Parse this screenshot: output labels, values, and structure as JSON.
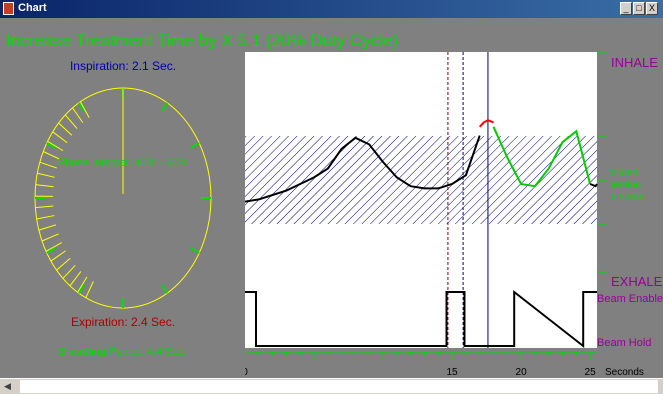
{
  "window": {
    "title": "Chart",
    "minimize_label": "_",
    "maximize_label": "□",
    "close_label": "X"
  },
  "heading": "Increase Treatment Time by X 5.1 (20% Duty Cycle)",
  "gauge": {
    "inspiration_label": "Inspiration: 2.1 Sec.",
    "phase_interval_label": "Phase Interval: 40% - 60%",
    "expiration_label": "Expiration: 2.4 Sec.",
    "breathing_period_label": "Breathing Period: 4.4 Sec.",
    "colors": {
      "circle": "#ffff00",
      "ticks": "#00dd00",
      "inspiration_text": "#0000aa",
      "expiration_text": "#aa0000",
      "info_text": "#00dd00"
    }
  },
  "chart_data": [
    {
      "type": "line",
      "title": "",
      "xlabel": "Seconds",
      "xlim": [
        0,
        25.5
      ],
      "x_ticks": [
        "0",
        "15",
        "20",
        "25"
      ],
      "right_labels": {
        "top": "INHALE",
        "gated": "Gated Motion 3.5 mm",
        "bottom": "EXHALE"
      },
      "gate_window": {
        "ymin": 0.35,
        "ymax": 0.75,
        "pattern": "diagonal-hatch",
        "color": "#000080"
      },
      "markers": [
        {
          "x": 14.7,
          "style": "dashed",
          "color": "#8b0000"
        },
        {
          "x": 15.8,
          "style": "dashed",
          "color": "#000080"
        },
        {
          "x": 17.6,
          "style": "solid",
          "color": "#000080"
        }
      ],
      "series": [
        {
          "color": "#000000",
          "x": [
            0,
            1,
            2,
            3,
            4,
            5,
            6,
            7,
            8,
            9,
            10,
            11,
            12,
            13,
            14,
            15,
            16,
            17
          ],
          "y": [
            0.32,
            0.33,
            0.35,
            0.37,
            0.4,
            0.43,
            0.47,
            0.56,
            0.61,
            0.58,
            0.5,
            0.43,
            0.39,
            0.38,
            0.38,
            0.4,
            0.44,
            0.62
          ]
        },
        {
          "color": "#ff0000",
          "x": [
            17,
            17.3,
            17.6,
            18
          ],
          "y": [
            0.66,
            0.68,
            0.69,
            0.68
          ]
        },
        {
          "color": "#00cc00",
          "x": [
            18,
            19,
            20,
            21,
            22,
            23,
            24,
            25
          ],
          "y": [
            0.66,
            0.52,
            0.4,
            0.39,
            0.47,
            0.59,
            0.64,
            0.4
          ]
        },
        {
          "color": "#000000",
          "x": [
            25,
            25.4,
            25.5
          ],
          "y": [
            0.4,
            0.39,
            0.4
          ]
        }
      ]
    },
    {
      "type": "line",
      "title": "",
      "right_labels": {
        "high": "Beam Enable",
        "low": "Beam Hold"
      },
      "series": [
        {
          "color": "#000000",
          "x": [
            0,
            0.8,
            0.8,
            4.5,
            4.5,
            14.6,
            14.6,
            15.9,
            15.9,
            18.5,
            18.5,
            19.5,
            19.5,
            24.5,
            24.5,
            25.5
          ],
          "y": [
            1,
            1,
            0,
            0,
            0,
            0,
            1,
            1,
            0,
            0,
            0,
            0,
            1,
            0,
            1,
            1
          ]
        }
      ]
    }
  ]
}
